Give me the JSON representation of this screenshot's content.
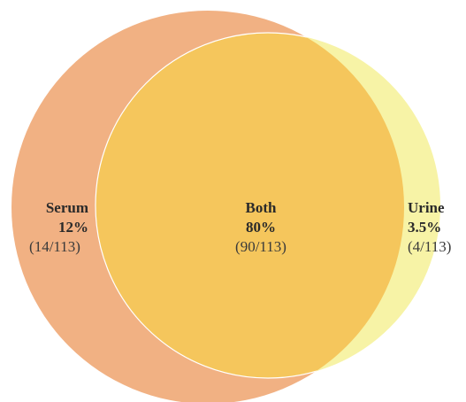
{
  "regions": [
    {
      "label": "Serum",
      "percent": "12%",
      "count": "(14/113)"
    },
    {
      "label": "Both",
      "percent": "80%",
      "count": "(90/113)"
    },
    {
      "label": "Urine",
      "percent": "3.5%",
      "count": "(4/113)"
    }
  ]
}
